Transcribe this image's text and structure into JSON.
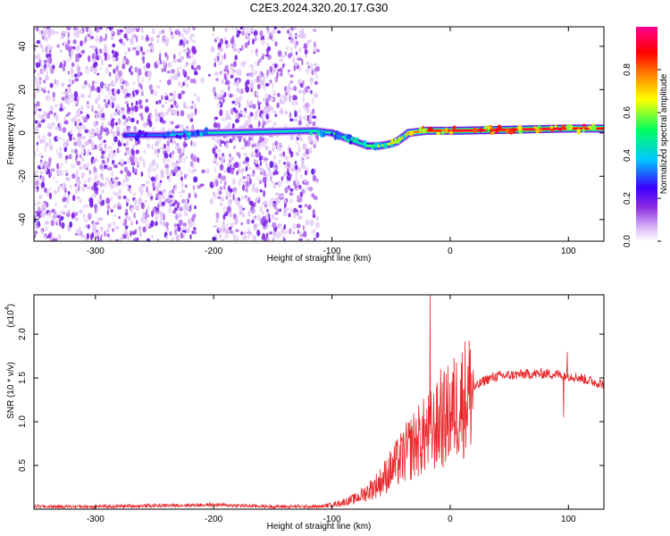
{
  "title": "C2E3.2024.320.20.17.G30",
  "chart_data": [
    {
      "type": "heatmap",
      "xlabel": "Height of straight line (km)",
      "ylabel": "Frequency (Hz)",
      "xlim": [
        -352,
        130
      ],
      "ylim": [
        -50,
        49
      ],
      "xticks": [
        -300,
        -200,
        -100,
        0,
        100
      ],
      "yticks": [
        -40,
        -20,
        0,
        20,
        40
      ],
      "colorbar": {
        "label": "Normalized spectral amplitude",
        "range": [
          0,
          1
        ],
        "ticks": [
          0.0,
          0.2,
          0.4,
          0.6,
          0.8
        ],
        "colors": [
          "#ffffff",
          "#d9b8f5",
          "#8a2be2",
          "#3a00ff",
          "#00c8ff",
          "#00ff70",
          "#ffff00",
          "#ff8000",
          "#ff0000",
          "#ff0090"
        ]
      },
      "noise_region_km": [
        -352,
        -112
      ],
      "noise_gaps_km": [
        [
          -215,
          -200
        ]
      ],
      "frequency_track": {
        "x": [
          -275,
          -240,
          -205,
          -115,
          -100,
          -90,
          -80,
          -70,
          -60,
          -50,
          -45,
          -35,
          -20,
          0,
          50,
          100,
          130
        ],
        "y": [
          -1,
          -1,
          0,
          1,
          0,
          -2,
          -4,
          -6,
          -6,
          -5,
          -4,
          0,
          1,
          1,
          1.5,
          2,
          2
        ],
        "peak_amplitude": [
          0.35,
          0.45,
          0.5,
          0.5,
          0.55,
          0.6,
          0.5,
          0.55,
          0.65,
          0.7,
          0.7,
          0.75,
          0.85,
          0.9,
          0.95,
          0.92,
          0.9
        ]
      }
    },
    {
      "type": "line",
      "xlabel": "Height of straight line (km)",
      "ylabel": "SNR (10 * v/v)",
      "yscale_label": "(x10",
      "yscale_exp": "4",
      "xlim": [
        -352,
        130
      ],
      "ylim": [
        0,
        2.45
      ],
      "xticks": [
        -300,
        -200,
        -100,
        0,
        100
      ],
      "yticks": [
        0.5,
        1.0,
        1.5,
        2.0
      ],
      "ytick_labels": [
        "0.5",
        "1.0",
        "1.5",
        "2.0"
      ],
      "series": [
        {
          "color": "#e8282c",
          "x": [
            -352,
            -300,
            -250,
            -200,
            -150,
            -110,
            -100,
            -90,
            -80,
            -70,
            -60,
            -50,
            -40,
            -30,
            -20,
            -10,
            0,
            10,
            20,
            30,
            40,
            60,
            80,
            100,
            110,
            120,
            130
          ],
          "y": [
            0.03,
            0.03,
            0.04,
            0.05,
            0.03,
            0.03,
            0.05,
            0.08,
            0.12,
            0.2,
            0.3,
            0.45,
            0.6,
            0.75,
            0.85,
            0.95,
            1.1,
            1.25,
            1.38,
            1.48,
            1.52,
            1.54,
            1.55,
            1.53,
            1.5,
            1.46,
            1.43
          ],
          "spikes": [
            {
              "x": -17,
              "y": 2.45
            },
            {
              "x": -8,
              "y": 1.6
            },
            {
              "x": 99,
              "y": 1.8
            },
            {
              "x": 96,
              "y": 1.05
            }
          ]
        }
      ]
    }
  ]
}
